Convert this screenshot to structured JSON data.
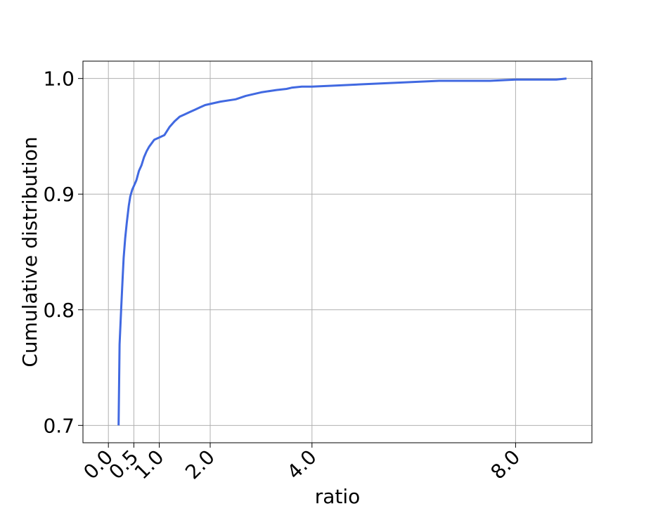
{
  "chart_data": {
    "type": "line",
    "title": "",
    "xlabel": "ratio",
    "ylabel": "Cumulative distribution",
    "xlim": [
      -0.5,
      9.5
    ],
    "ylim": [
      0.685,
      1.015
    ],
    "grid": true,
    "x_ticks": [
      {
        "value": 0.0,
        "label": "0.0"
      },
      {
        "value": 0.5,
        "label": "0.5"
      },
      {
        "value": 1.0,
        "label": "1.0"
      },
      {
        "value": 2.0,
        "label": "2.0"
      },
      {
        "value": 4.0,
        "label": "4.0"
      },
      {
        "value": 8.0,
        "label": "8.0"
      }
    ],
    "y_ticks": [
      {
        "value": 0.7,
        "label": "0.7"
      },
      {
        "value": 0.8,
        "label": "0.8"
      },
      {
        "value": 0.9,
        "label": "0.9"
      },
      {
        "value": 1.0,
        "label": "1.0"
      }
    ],
    "series": [
      {
        "color": "#4169e1",
        "x": [
          0.2,
          0.22,
          0.25,
          0.28,
          0.3,
          0.33,
          0.36,
          0.4,
          0.43,
          0.47,
          0.5,
          0.55,
          0.6,
          0.65,
          0.7,
          0.75,
          0.8,
          0.9,
          1.0,
          1.1,
          1.2,
          1.3,
          1.4,
          1.5,
          1.6,
          1.7,
          1.8,
          1.9,
          2.0,
          2.2,
          2.5,
          2.7,
          3.0,
          3.3,
          3.5,
          3.6,
          3.8,
          4.0,
          4.5,
          5.0,
          5.5,
          6.0,
          6.5,
          7.0,
          7.5,
          8.0,
          8.5,
          8.8,
          9.0
        ],
        "y": [
          0.7,
          0.77,
          0.8,
          0.828,
          0.845,
          0.862,
          0.875,
          0.89,
          0.898,
          0.904,
          0.907,
          0.912,
          0.92,
          0.925,
          0.932,
          0.937,
          0.941,
          0.947,
          0.949,
          0.951,
          0.958,
          0.963,
          0.967,
          0.969,
          0.971,
          0.973,
          0.975,
          0.977,
          0.978,
          0.98,
          0.982,
          0.985,
          0.988,
          0.99,
          0.991,
          0.992,
          0.993,
          0.993,
          0.994,
          0.995,
          0.996,
          0.997,
          0.998,
          0.998,
          0.998,
          0.999,
          0.999,
          0.999,
          1.0
        ]
      }
    ]
  }
}
